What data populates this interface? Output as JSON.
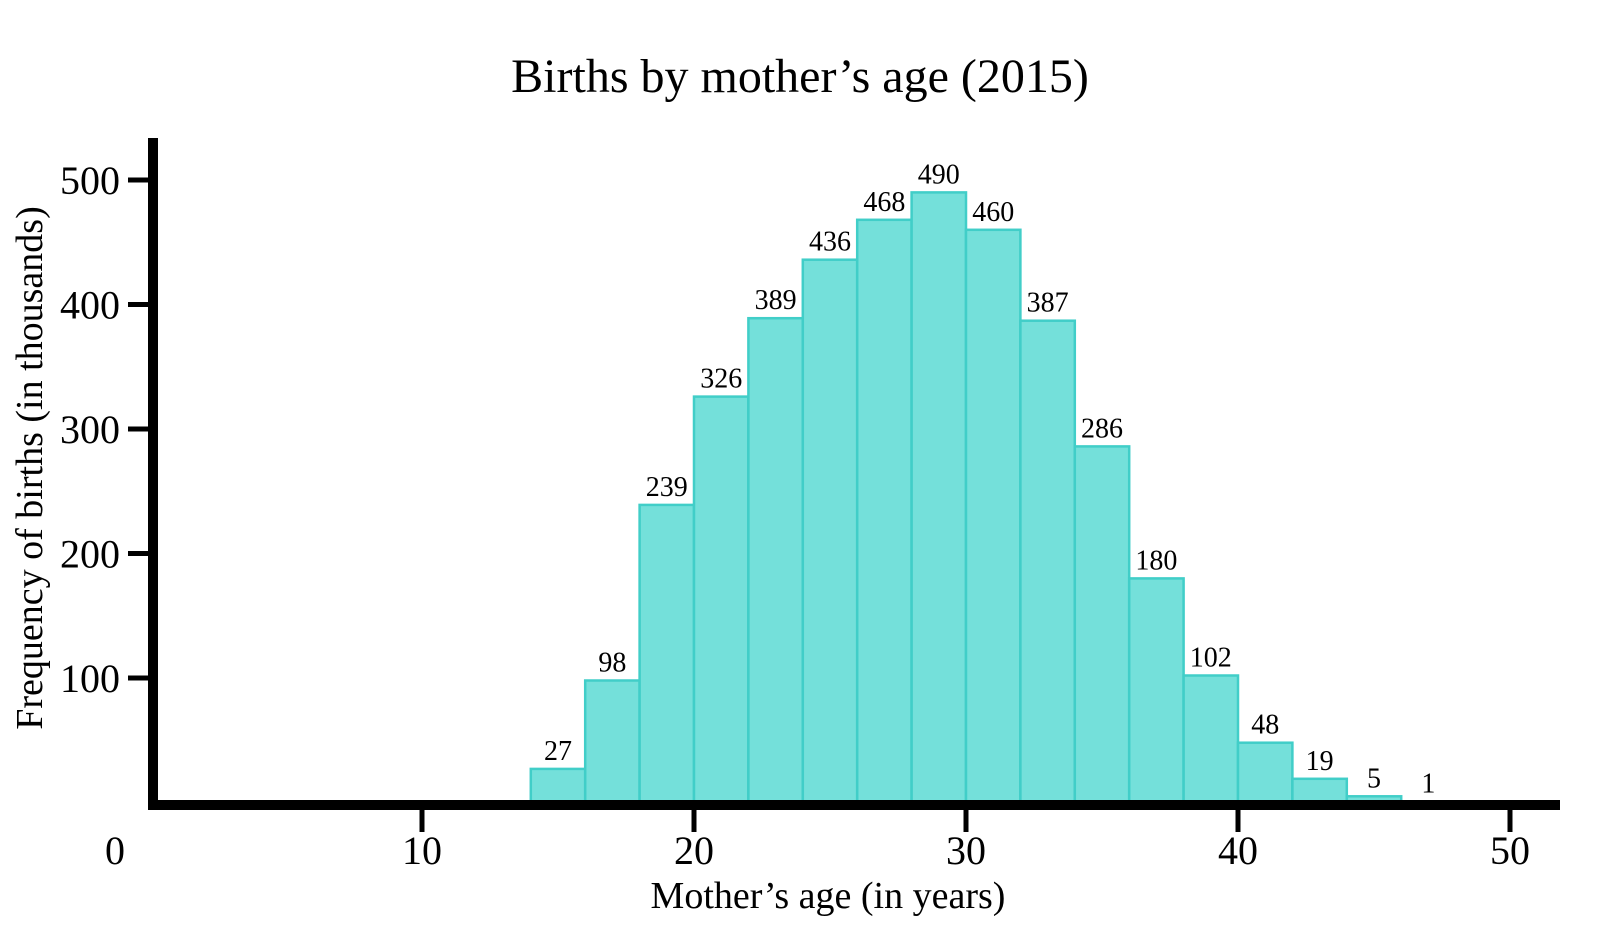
{
  "page": {
    "background": "#ffffff"
  },
  "chart_data": {
    "type": "bar",
    "subtype": "histogram",
    "title": "Births by mother’s age (2015)",
    "xlabel": "Mother’s age (in years)",
    "ylabel": "Frequency of births (in thousands)",
    "bin_width": 2,
    "bin_starts": [
      14,
      16,
      18,
      20,
      22,
      24,
      26,
      28,
      30,
      32,
      34,
      36,
      38,
      40,
      42,
      44,
      46
    ],
    "values": [
      27,
      98,
      239,
      326,
      389,
      436,
      468,
      490,
      460,
      387,
      286,
      180,
      102,
      48,
      19,
      5,
      1
    ],
    "bar_value_labels": [
      "27",
      "98",
      "239",
      "326",
      "389",
      "436",
      "468",
      "490",
      "460",
      "387",
      "286",
      "180",
      "102",
      "48",
      "19",
      "5",
      "1"
    ],
    "x_ticks": [
      0,
      10,
      20,
      30,
      40,
      50
    ],
    "x_tick_labels": [
      "0",
      "10",
      "20",
      "30",
      "40",
      "50"
    ],
    "y_ticks": [
      100,
      200,
      300,
      400,
      500
    ],
    "y_tick_labels": [
      "100",
      "200",
      "300",
      "400",
      "500"
    ],
    "xlim": [
      0,
      51.8
    ],
    "ylim": [
      0,
      534
    ],
    "grid": false,
    "legend": false,
    "bar_fill": "#74E0DA",
    "bar_edge": "#41CEC8",
    "axis_color": "#000000",
    "text_color": "#000000"
  }
}
